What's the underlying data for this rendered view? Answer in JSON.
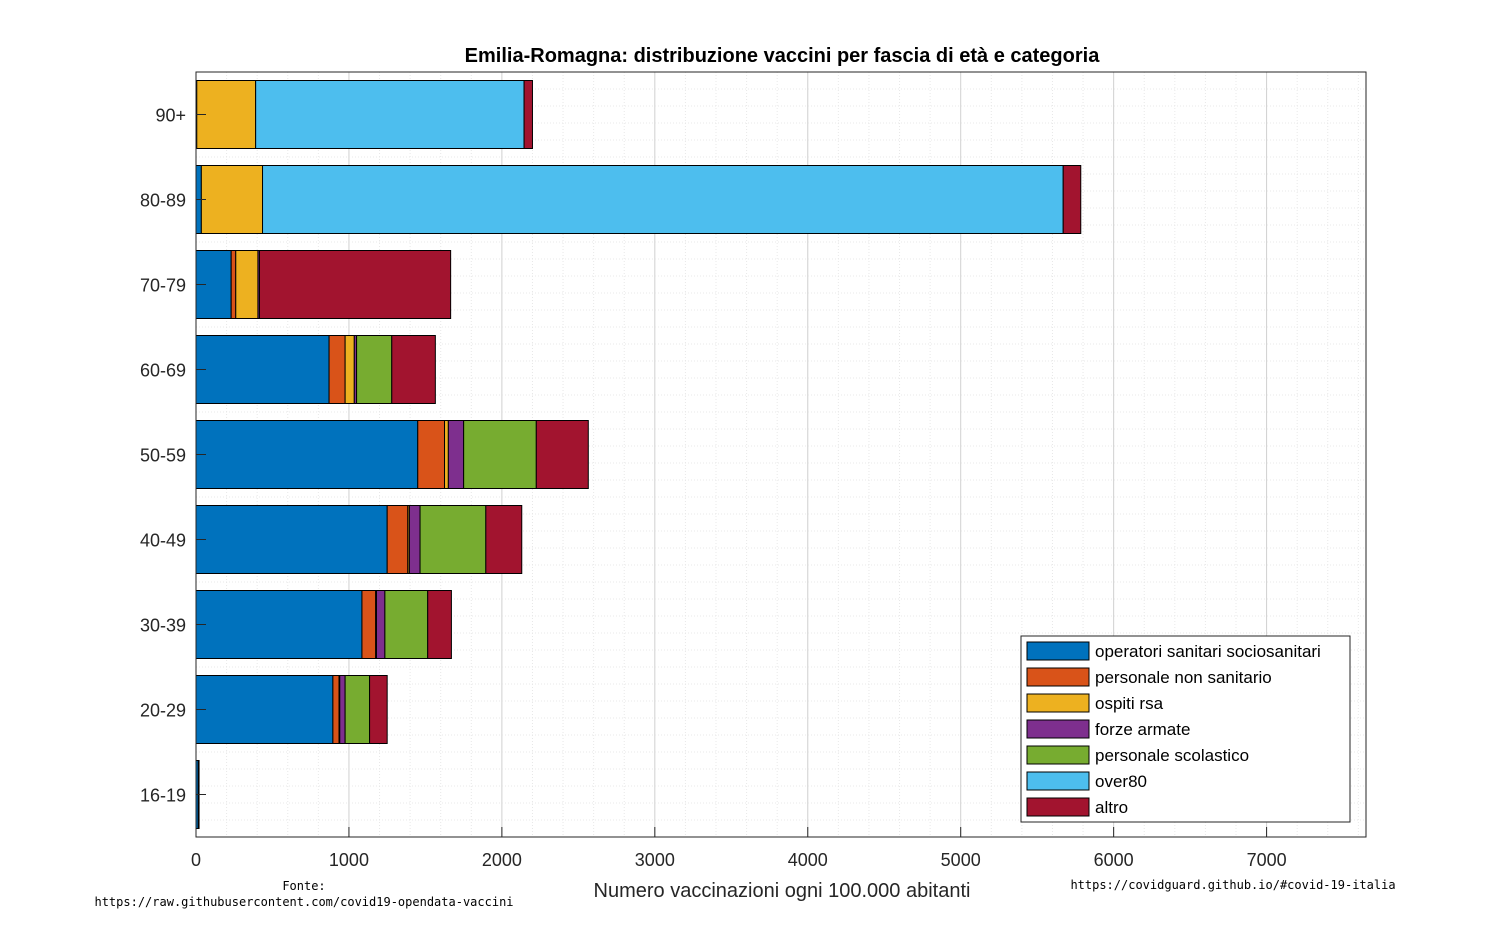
{
  "chart_data": {
    "type": "bar",
    "orientation": "horizontal",
    "stacked": true,
    "title": "Emilia-Romagna: distribuzione vaccini per fascia di età e categoria",
    "xlabel": "Numero vaccinazioni ogni 100.000 abitanti",
    "ylabel": "",
    "xlim": [
      0,
      7650
    ],
    "xticks": [
      0,
      1000,
      2000,
      3000,
      4000,
      5000,
      6000,
      7000
    ],
    "grid": true,
    "legend_position": "bottom-right",
    "categories": [
      "90+",
      "80-89",
      "70-79",
      "60-69",
      "50-59",
      "40-49",
      "30-39",
      "20-29",
      "16-19"
    ],
    "series": [
      {
        "name": "operatori sanitari sociosanitari",
        "color": "#0072BD",
        "values": [
          5,
          35,
          230,
          870,
          1450,
          1250,
          1085,
          895,
          15
        ]
      },
      {
        "name": "personale non sanitario",
        "color": "#D95319",
        "values": [
          0,
          0,
          30,
          105,
          175,
          135,
          90,
          40,
          3
        ]
      },
      {
        "name": "ospiti rsa",
        "color": "#EDB120",
        "values": [
          385,
          400,
          145,
          60,
          25,
          10,
          5,
          5,
          0
        ]
      },
      {
        "name": "forze armate",
        "color": "#7E2F8E",
        "values": [
          0,
          0,
          10,
          15,
          100,
          70,
          55,
          35,
          0
        ]
      },
      {
        "name": "personale scolastico",
        "color": "#77AC30",
        "values": [
          0,
          0,
          0,
          230,
          475,
          430,
          280,
          160,
          0
        ]
      },
      {
        "name": "over80",
        "color": "#4DBEEE",
        "values": [
          1755,
          5235,
          0,
          0,
          0,
          0,
          0,
          0,
          0
        ]
      },
      {
        "name": "altro",
        "color": "#A2142F",
        "values": [
          55,
          115,
          1250,
          285,
          340,
          235,
          155,
          115,
          2
        ]
      }
    ]
  },
  "footer": {
    "source_label": "Fonte:",
    "source_url": "https://raw.githubusercontent.com/covid19-opendata-vaccini",
    "site_url": "https://covidguard.github.io/#covid-19-italia"
  }
}
